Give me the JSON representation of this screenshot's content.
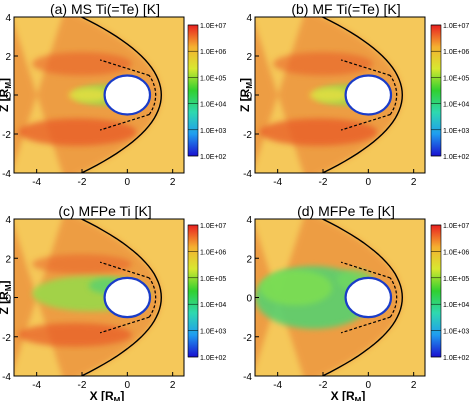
{
  "chart_data": [
    {
      "type": "heatmap",
      "title": "(a) MS Ti(=Te) [K]",
      "xlabel": "",
      "ylabel": "Z [R",
      "ylabel_sub": "M",
      "ylabel_end": "]",
      "xlim": [
        -5,
        2.5
      ],
      "ylim": [
        -4,
        4
      ],
      "xticks": [
        "-4",
        "-2",
        "0",
        "2"
      ],
      "yticks": [
        "-4",
        "-2",
        "0",
        "2",
        "4"
      ],
      "colorbar": {
        "scale": "log",
        "range": [
          100,
          10000000
        ],
        "labels": [
          "1.0E+07",
          "1.0E+06",
          "1.0E+05",
          "1.0E+04",
          "1.0E+03",
          "1.0E+02"
        ]
      },
      "boundaries": {
        "bow_shock_nose_x": 1.5,
        "magnetopause_nose_x": 1.25,
        "planet_radius": 1.0
      },
      "variant": "ms"
    },
    {
      "type": "heatmap",
      "title": "(b) MF Ti(=Te) [K]",
      "xlabel": "",
      "ylabel": "Z [R",
      "ylabel_sub": "M",
      "ylabel_end": "]",
      "xlim": [
        -5,
        2.5
      ],
      "ylim": [
        -4,
        4
      ],
      "xticks": [
        "-4",
        "-2",
        "0",
        "2"
      ],
      "yticks": [
        "-4",
        "-2",
        "0",
        "2",
        "4"
      ],
      "colorbar": {
        "scale": "log",
        "range": [
          100,
          10000000
        ],
        "labels": [
          "1.0E+07",
          "1.0E+06",
          "1.0E+05",
          "1.0E+04",
          "1.0E+03",
          "1.0E+02"
        ]
      },
      "boundaries": {
        "bow_shock_nose_x": 1.5,
        "magnetopause_nose_x": 1.25,
        "planet_radius": 1.0
      },
      "variant": "mf"
    },
    {
      "type": "heatmap",
      "title": "(c) MFPe Ti [K]",
      "xlabel": "X [R",
      "xlabel_sub": "M",
      "xlabel_end": "]",
      "ylabel": "Z [R",
      "ylabel_sub": "M",
      "ylabel_end": "]",
      "xlim": [
        -5,
        2.5
      ],
      "ylim": [
        -4,
        4
      ],
      "xticks": [
        "-4",
        "-2",
        "0",
        "2"
      ],
      "yticks": [
        "-4",
        "-2",
        "0",
        "2",
        "4"
      ],
      "colorbar": {
        "scale": "log",
        "range": [
          100,
          10000000
        ],
        "labels": [
          "1.0E+07",
          "1.0E+06",
          "1.0E+05",
          "1.0E+04",
          "1.0E+03",
          "1.0E+02"
        ]
      },
      "boundaries": {
        "bow_shock_nose_x": 1.5,
        "magnetopause_nose_x": 1.25,
        "planet_radius": 1.0
      },
      "variant": "mfpe_ti"
    },
    {
      "type": "heatmap",
      "title": "(d) MFPe Te [K]",
      "xlabel": "X [R",
      "xlabel_sub": "M",
      "xlabel_end": "]",
      "ylabel": "",
      "xlim": [
        -5,
        2.5
      ],
      "ylim": [
        -4,
        4
      ],
      "xticks": [
        "-4",
        "-2",
        "0",
        "2"
      ],
      "yticks": [
        "-4",
        "-2",
        "0",
        "2",
        "4"
      ],
      "colorbar": {
        "scale": "log",
        "range": [
          100,
          10000000
        ],
        "labels": [
          "1.0E+07",
          "1.0E+06",
          "1.0E+05",
          "1.0E+04",
          "1.0E+03",
          "1.0E+02"
        ]
      },
      "boundaries": {
        "bow_shock_nose_x": 1.5,
        "magnetopause_nose_x": 1.25,
        "planet_radius": 1.0
      },
      "variant": "mfpe_te"
    }
  ],
  "colors": {
    "solar_wind": "#f5c85a",
    "hot_sheath": "#e87a30",
    "very_hot": "#e85a28",
    "mid_green": "#9ad84a",
    "cool_green": "#58d070",
    "planet_rim": "#1a3cc8",
    "planet": "#ffffff",
    "line": "#000000",
    "colorbar_stops": [
      "#1a10d0",
      "#1f9cf0",
      "#2fd8b0",
      "#30d030",
      "#d8e830",
      "#f5b030",
      "#e82020"
    ]
  }
}
